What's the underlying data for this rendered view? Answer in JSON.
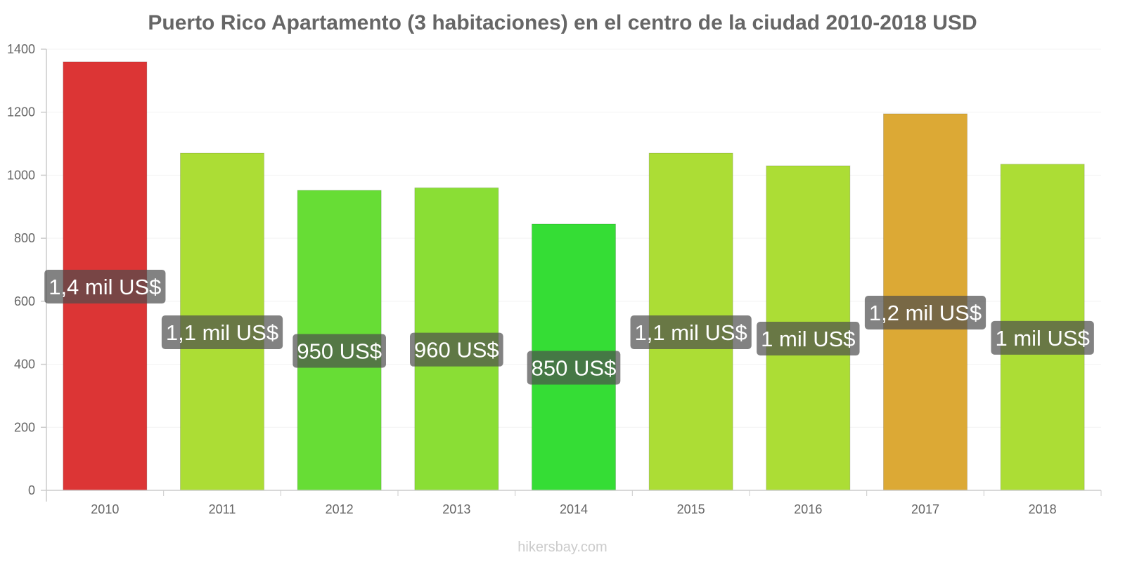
{
  "chart_data": {
    "type": "bar",
    "title": "Puerto Rico Apartamento (3 habitaciones) en el centro de la ciudad 2010-2018 USD",
    "xlabel": "",
    "ylabel": "",
    "ylim": [
      0,
      1400
    ],
    "yticks": [
      "0",
      "200",
      "400",
      "600",
      "800",
      "1000",
      "1200",
      "1400"
    ],
    "grid": true,
    "categories": [
      "2010",
      "2011",
      "2012",
      "2013",
      "2014",
      "2015",
      "2016",
      "2017",
      "2018"
    ],
    "values": [
      1360,
      1070,
      952,
      960,
      845,
      1070,
      1030,
      1195,
      1035
    ],
    "labels": [
      "1,4 mil US$",
      "1,1 mil US$",
      "950 US$",
      "960 US$",
      "850 US$",
      "1,1 mil US$",
      "1 mil US$",
      "1,2 mil US$",
      "1 mil US$"
    ],
    "colors": [
      "#dc3535",
      "#acdd35",
      "#67dd35",
      "#8ade35",
      "#35dd35",
      "#acdd35",
      "#acdd35",
      "#dca935",
      "#acdd35"
    ]
  },
  "watermark": "hikersbay.com"
}
